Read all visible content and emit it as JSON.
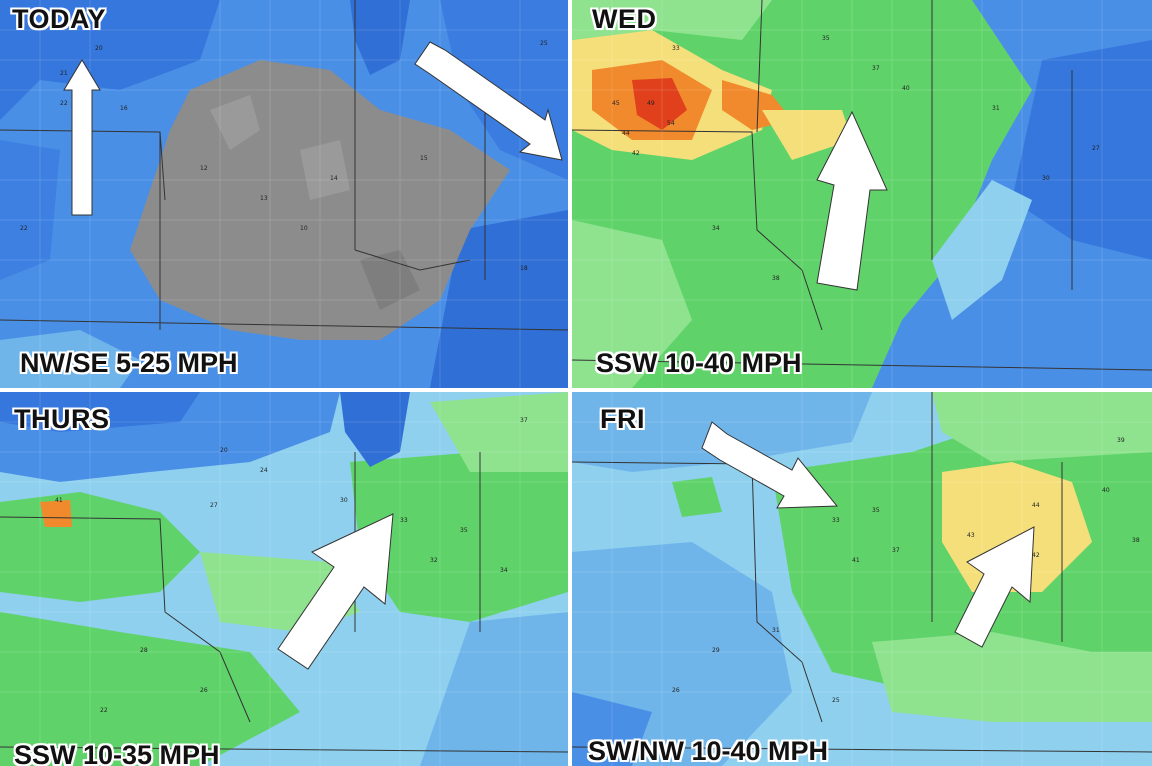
{
  "panels": [
    {
      "day": "TODAY",
      "wind": "NW/SE 5-25 MPH",
      "arrows": [
        "north",
        "southeast"
      ],
      "values": [
        "20",
        "21",
        "22",
        "16",
        "18",
        "12",
        "13",
        "15",
        "14",
        "10",
        "11",
        "9",
        "25",
        "24",
        "18",
        "22"
      ]
    },
    {
      "day": "WED",
      "wind": "SSW 10-40 MPH",
      "arrows": [
        "north-northeast"
      ],
      "values": [
        "33",
        "35",
        "37",
        "40",
        "45",
        "49",
        "54",
        "44",
        "42",
        "34",
        "30",
        "31",
        "38",
        "36",
        "27",
        "26"
      ]
    },
    {
      "day": "THURS",
      "wind": "SSW 10-35 MPH",
      "arrows": [
        "northeast"
      ],
      "values": [
        "17",
        "20",
        "24",
        "27",
        "30",
        "33",
        "35",
        "34",
        "41",
        "32",
        "28",
        "26",
        "22",
        "36",
        "37",
        "31"
      ]
    },
    {
      "day": "FRI",
      "wind": "SW/NW 10-40 MPH",
      "arrows": [
        "southeast",
        "northeast"
      ],
      "values": [
        "33",
        "35",
        "37",
        "41",
        "43",
        "44",
        "42",
        "40",
        "39",
        "38",
        "36",
        "34",
        "31",
        "29",
        "26",
        "25"
      ]
    }
  ],
  "colors": {
    "gray": "#8c8c8c",
    "dark_blue": "#2f6fd6",
    "mid_blue": "#4a8fe6",
    "light_blue": "#8fd0ef",
    "green": "#5fd36a",
    "light_green": "#8fe38f",
    "yellow": "#f5df7a",
    "orange": "#f08a2c",
    "red": "#e0401c",
    "arrow": "#ffffff"
  }
}
